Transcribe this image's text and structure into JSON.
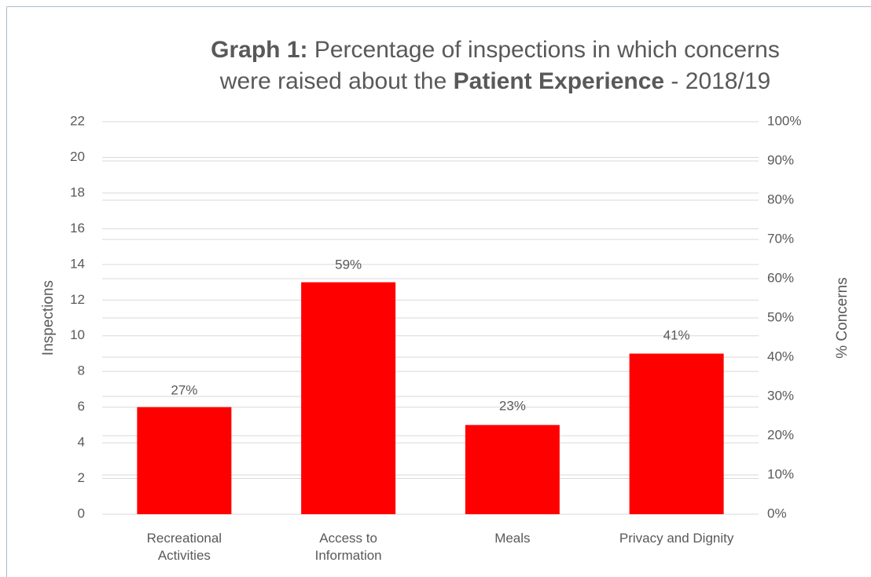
{
  "chart_data": {
    "type": "bar",
    "title_lines": [
      [
        {
          "text": "Graph 1:",
          "bold": true
        },
        {
          "text": " Percentage of inspections in which concerns",
          "bold": false
        }
      ],
      [
        {
          "text": "were raised about the ",
          "bold": false
        },
        {
          "text": "Patient Experience",
          "bold": true
        },
        {
          "text": " - 2018/19",
          "bold": false
        }
      ]
    ],
    "y_label": "Inspections",
    "y2_label": "% Concerns",
    "categories": [
      "Recreational Activities",
      "Access to Information",
      "Meals",
      "Privacy and Dignity"
    ],
    "values": [
      6,
      13,
      5,
      9
    ],
    "color": "#ff0000",
    "percent_labels": {
      "axis": "y2",
      "values": [
        27,
        59,
        23,
        41
      ],
      "value_labels": [
        "27%",
        "59%",
        "23%",
        "41%"
      ]
    },
    "ylim": [
      0,
      22
    ],
    "yticks": [
      0,
      2,
      4,
      6,
      8,
      10,
      12,
      14,
      16,
      18,
      20,
      22
    ],
    "y2lim": [
      0,
      100
    ],
    "y2ticks": [
      {
        "value": 0,
        "label": "0%"
      },
      {
        "value": 10,
        "label": "10%"
      },
      {
        "value": 20,
        "label": "20%"
      },
      {
        "value": 30,
        "label": "30%"
      },
      {
        "value": 40,
        "label": "40%"
      },
      {
        "value": 50,
        "label": "50%"
      },
      {
        "value": 60,
        "label": "60%"
      },
      {
        "value": 70,
        "label": "70%"
      },
      {
        "value": 80,
        "label": "80%"
      },
      {
        "value": 90,
        "label": "90%"
      },
      {
        "value": 100,
        "label": "100%"
      }
    ],
    "grid": true
  }
}
